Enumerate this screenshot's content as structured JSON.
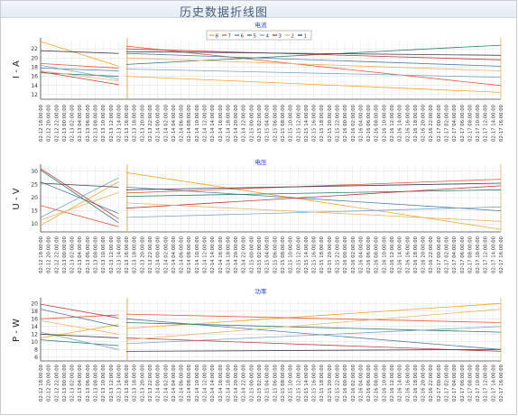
{
  "page_title": "历史数据折线图",
  "charts": [
    {
      "title": "电流",
      "ylabel": "I - A",
      "yticks": [
        12,
        14,
        16,
        18,
        20,
        22
      ],
      "ylim": [
        11,
        24
      ],
      "legend": [
        "8",
        "7",
        "6",
        "5",
        "4",
        "3",
        "2",
        "1"
      ],
      "x_labels": [
        "02-12 18:00:00",
        "02-12 20:00:00",
        "02-12 22:00:00",
        "02-13 00:00:00",
        "02-13 02:00:00",
        "02-13 04:00:00",
        "02-13 06:00:00",
        "02-13 08:00:00",
        "02-13 10:00:00",
        "02-13 12:00:00",
        "02-13 14:00:00",
        "02-13 16:00:00",
        "02-13 18:00:00",
        "02-13 20:00:00",
        "02-13 22:00:00",
        "02-14 00:00:00",
        "02-14 02:00:00",
        "02-14 04:00:00",
        "02-14 06:00:00",
        "02-14 08:00:00",
        "02-14 10:00:00",
        "02-14 12:00:00",
        "02-14 14:00:00",
        "02-14 16:00:00",
        "02-14 18:00:00",
        "02-14 20:00:00",
        "02-14 22:00:00",
        "02-15 00:00:00",
        "02-15 02:00:00",
        "02-15 04:00:00",
        "02-15 06:00:00",
        "02-15 08:00:00",
        "02-15 10:00:00",
        "02-15 12:00:00",
        "02-15 14:00:00",
        "02-15 16:00:00",
        "02-15 18:00:00",
        "02-15 20:00:00",
        "02-15 22:00:00",
        "02-16 00:00:00",
        "02-16 02:00:00",
        "02-16 04:00:00",
        "02-16 06:00:00",
        "02-16 08:00:00",
        "02-16 10:00:00",
        "02-16 12:00:00",
        "02-16 14:00:00",
        "02-16 16:00:00",
        "02-16 18:00:00",
        "02-16 20:00:00",
        "02-16 22:00:00",
        "02-17 00:00:00",
        "02-17 02:00:00",
        "02-17 04:00:00",
        "02-17 06:00:00",
        "02-17 08:00:00",
        "02-17 10:00:00",
        "02-17 12:00:00",
        "02-17 14:00:00",
        "02-17 16:00:00"
      ]
    },
    {
      "title": "电压",
      "ylabel": "U - V",
      "yticks": [
        10,
        15,
        20,
        25,
        30
      ],
      "ylim": [
        7,
        32
      ],
      "x_labels": [
        "02-12 18:00:00",
        "02-12 20:00:00",
        "02-12 22:00:00",
        "02-13 00:00:00",
        "02-13 02:00:00",
        "02-13 04:00:00",
        "02-13 06:00:00",
        "02-13 08:00:00",
        "02-13 10:00:00",
        "02-13 12:00:00",
        "02-13 14:00:00",
        "02-13 16:00:00",
        "02-13 18:00:00",
        "02-13 20:00:00",
        "02-13 22:00:00",
        "02-14 00:00:00",
        "02-14 02:00:00",
        "02-14 04:00:00",
        "02-14 06:00:00",
        "02-14 08:00:00",
        "02-14 10:00:00",
        "02-14 12:00:00",
        "02-14 14:00:00",
        "02-14 16:00:00",
        "02-14 18:00:00",
        "02-14 20:00:00",
        "02-14 22:00:00",
        "02-15 00:00:00",
        "02-15 02:00:00",
        "02-15 04:00:00",
        "02-15 06:00:00",
        "02-15 08:00:00",
        "02-15 10:00:00",
        "02-15 12:00:00",
        "02-15 14:00:00",
        "02-15 16:00:00",
        "02-15 18:00:00",
        "02-15 20:00:00",
        "02-15 22:00:00",
        "02-16 00:00:00",
        "02-16 02:00:00",
        "02-16 04:00:00",
        "02-16 06:00:00",
        "02-16 08:00:00",
        "02-16 10:00:00",
        "02-16 12:00:00",
        "02-16 14:00:00",
        "02-16 16:00:00",
        "02-16 18:00:00",
        "02-16 20:00:00",
        "02-16 22:00:00",
        "02-17 00:00:00",
        "02-17 02:00:00",
        "02-17 04:00:00",
        "02-17 06:00:00",
        "02-17 08:00:00",
        "02-17 10:00:00",
        "02-17 12:00:00",
        "02-17 14:00:00",
        "02-17 16:00:00"
      ]
    },
    {
      "title": "功率",
      "ylabel": "P - W",
      "yticks": [
        6,
        8,
        10,
        12,
        14,
        16,
        18,
        20
      ],
      "ylim": [
        5,
        21
      ],
      "x_labels": [
        "02-12 18:00:00",
        "02-12 20:00:00",
        "02-12 22:00:00",
        "02-13 00:00:00",
        "02-13 02:00:00",
        "02-13 04:00:00",
        "02-13 06:00:00",
        "02-13 08:00:00",
        "02-13 10:00:00",
        "02-13 12:00:00",
        "02-13 14:00:00",
        "02-13 16:00:00",
        "02-13 18:00:00",
        "02-13 20:00:00",
        "02-13 22:00:00",
        "02-14 00:00:00",
        "02-14 02:00:00",
        "02-14 04:00:00",
        "02-14 06:00:00",
        "02-14 08:00:00",
        "02-14 10:00:00",
        "02-14 12:00:00",
        "02-14 14:00:00",
        "02-14 16:00:00",
        "02-14 18:00:00",
        "02-14 20:00:00",
        "02-14 22:00:00",
        "02-15 00:00:00",
        "02-15 02:00:00",
        "02-15 04:00:00",
        "02-15 06:00:00",
        "02-15 08:00:00",
        "02-15 10:00:00",
        "02-15 12:00:00",
        "02-15 14:00:00",
        "02-15 16:00:00",
        "02-15 18:00:00",
        "02-15 20:00:00",
        "02-15 22:00:00",
        "02-16 00:00:00",
        "02-16 02:00:00",
        "02-16 04:00:00",
        "02-16 06:00:00",
        "02-16 08:00:00",
        "02-16 10:00:00",
        "02-16 12:00:00",
        "02-16 14:00:00",
        "02-16 16:00:00",
        "02-16 18:00:00",
        "02-16 20:00:00",
        "02-16 22:00:00",
        "02-17 00:00:00",
        "02-17 02:00:00",
        "02-17 04:00:00",
        "02-17 06:00:00",
        "02-17 08:00:00",
        "02-17 10:00:00",
        "02-17 12:00:00",
        "02-17 14:00:00",
        "02-17 16:00:00"
      ]
    }
  ],
  "series_colors": [
    "#f5a623",
    "#e8583a",
    "#4d7fa8",
    "#2a7a6a",
    "#7aa5c6",
    "#c13a3a",
    "#e8b36a",
    "#444455"
  ],
  "chart_data": [
    {
      "type": "line",
      "title": "电流",
      "ylabel": "I - A",
      "ylim": [
        11,
        24
      ],
      "x": [
        "02-12 18:00:00",
        "02-13 14:00:00",
        "02-13 16:00:00",
        "02-17 16:00:00"
      ],
      "series": [
        {
          "name": "8",
          "values": [
            23.6,
            18.2,
            16.0,
            12.5
          ]
        },
        {
          "name": "7",
          "values": [
            18.8,
            17.8,
            22.6,
            14.0
          ]
        },
        {
          "name": "6",
          "values": [
            17.8,
            17.2,
            21.0,
            18.2
          ]
        },
        {
          "name": "5",
          "values": [
            16.8,
            16.0,
            18.6,
            22.8
          ]
        },
        {
          "name": "4",
          "values": [
            18.4,
            15.4,
            17.6,
            15.8
          ]
        },
        {
          "name": "3",
          "values": [
            17.0,
            14.2,
            22.0,
            19.6
          ]
        },
        {
          "name": "2",
          "values": [
            17.2,
            15.0,
            20.0,
            17.2
          ]
        },
        {
          "name": "1",
          "values": [
            21.6,
            21.0,
            21.4,
            20.6
          ]
        }
      ]
    },
    {
      "type": "line",
      "title": "电压",
      "ylabel": "U - V",
      "ylim": [
        7,
        32
      ],
      "x": [
        "02-12 18:00:00",
        "02-13 14:00:00",
        "02-13 16:00:00",
        "02-17 16:00:00"
      ],
      "series": [
        {
          "name": "8",
          "values": [
            9.5,
            26.0,
            29.5,
            8.0
          ]
        },
        {
          "name": "7",
          "values": [
            17.0,
            9.0,
            21.8,
            27.0
          ]
        },
        {
          "name": "6",
          "values": [
            26.0,
            14.0,
            24.0,
            15.0
          ]
        },
        {
          "name": "5",
          "values": [
            30.5,
            10.5,
            20.5,
            23.0
          ]
        },
        {
          "name": "4",
          "values": [
            12.5,
            27.5,
            12.5,
            16.5
          ]
        },
        {
          "name": "3",
          "values": [
            31.0,
            12.0,
            16.0,
            24.5
          ]
        },
        {
          "name": "2",
          "values": [
            11.5,
            22.0,
            18.0,
            11.0
          ]
        },
        {
          "name": "1",
          "values": [
            25.5,
            24.0,
            23.0,
            25.5
          ]
        }
      ]
    },
    {
      "type": "line",
      "title": "功率",
      "ylabel": "P - W",
      "ylim": [
        5,
        21
      ],
      "x": [
        "02-12 18:00:00",
        "02-13 14:00:00",
        "02-13 16:00:00",
        "02-17 16:00:00"
      ],
      "series": [
        {
          "name": "8",
          "values": [
            11.0,
            14.5,
            13.5,
            20.0
          ]
        },
        {
          "name": "7",
          "values": [
            16.0,
            17.0,
            17.2,
            15.0
          ]
        },
        {
          "name": "6",
          "values": [
            18.5,
            14.0,
            16.0,
            8.0
          ]
        },
        {
          "name": "5",
          "values": [
            10.5,
            9.0,
            15.0,
            12.5
          ]
        },
        {
          "name": "4",
          "values": [
            12.5,
            8.0,
            9.5,
            14.0
          ]
        },
        {
          "name": "3",
          "values": [
            19.8,
            16.2,
            11.0,
            7.5
          ]
        },
        {
          "name": "2",
          "values": [
            15.5,
            12.0,
            10.5,
            18.5
          ]
        },
        {
          "name": "1",
          "values": [
            12.0,
            11.0,
            7.5,
            8.0
          ]
        }
      ]
    }
  ]
}
